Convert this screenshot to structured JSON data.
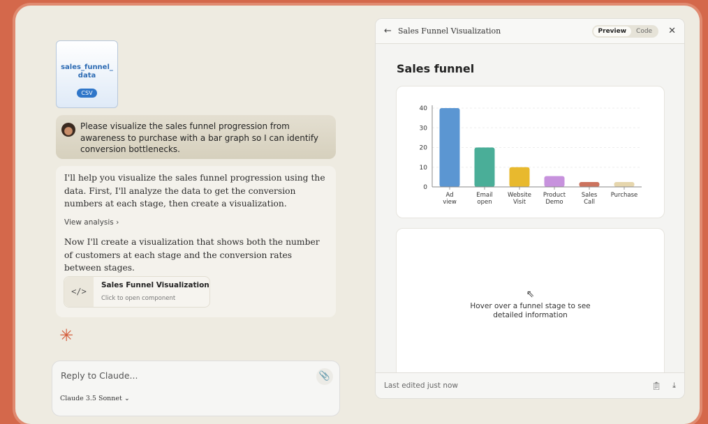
{
  "chat": {
    "file": {
      "name": "sales_funnel_ data",
      "type": "CSV"
    },
    "user_message": "Please visualize the sales funnel progression from awareness to purchase with a bar graph so I can identify conversion bottlenecks.",
    "assistant": {
      "p1": "I'll help you visualize the sales funnel progression using the data. First, I'll analyze the data to get the conversion numbers at each stage, then create a visualization.",
      "view_analysis": "View analysis",
      "p2": "Now I'll create a visualization that shows both the number of customers at each stage and the conversion rates between stages.",
      "artifact_title": "Sales Funnel Visualization",
      "artifact_subtitle": "Click to open component",
      "artifact_icon": "</>"
    },
    "input_placeholder": "Reply to Claude...",
    "model": "Claude 3.5 Sonnet"
  },
  "panel": {
    "title": "Sales Funnel Visualization",
    "tabs": [
      "Preview",
      "Code"
    ],
    "active_tab": "Preview",
    "heading": "Sales funnel",
    "hover_hint": "Hover over a funnel stage to see detailed information",
    "footer": "Last edited just now"
  },
  "chart_data": {
    "type": "bar",
    "categories": [
      "Ad view",
      "Email open",
      "Website Visit",
      "Product Demo",
      "Sales Call",
      "Purchase"
    ],
    "values": [
      40,
      20,
      10,
      5.5,
      2.5,
      2.5
    ],
    "colors": [
      "#5b96d2",
      "#4aae98",
      "#e8b92e",
      "#c792dd",
      "#cc735e",
      "#e6d6ad"
    ],
    "yticks": [
      0,
      10,
      20,
      30,
      40
    ],
    "ylim": [
      0,
      40
    ],
    "grid": true
  }
}
